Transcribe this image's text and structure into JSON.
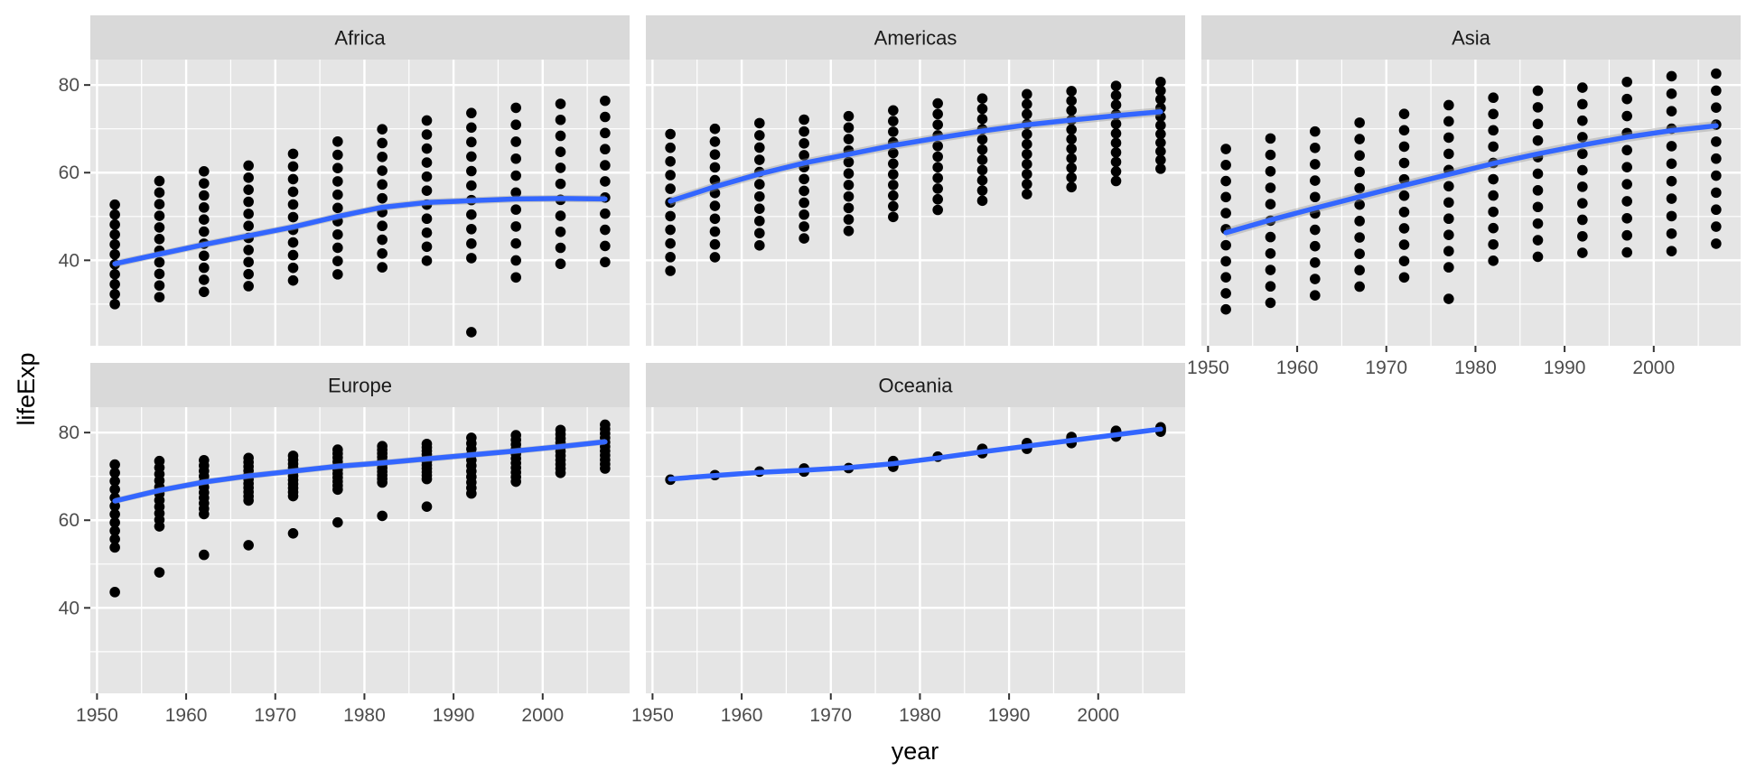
{
  "chart_data": {
    "type": "scatter",
    "facet_by": "continent",
    "xlabel": "year",
    "ylabel": "lifeExp",
    "xlim": [
      1949.25,
      2009.75
    ],
    "ylim": [
      20.5,
      85.8
    ],
    "x_ticks": [
      1950,
      1960,
      1970,
      1980,
      1990,
      2000
    ],
    "y_ticks": [
      40,
      60,
      80
    ],
    "years": [
      1952,
      1957,
      1962,
      1967,
      1972,
      1977,
      1982,
      1987,
      1992,
      1997,
      2002,
      2007
    ],
    "grid": true,
    "legend": "none",
    "colors": {
      "panel_background": "#e5e5e5",
      "strip_background": "#d9d9d9",
      "grid": "#ffffff",
      "points": "#000000",
      "smooth_line": "#3366ff",
      "ribbon": "#999999"
    },
    "facets": [
      {
        "name": "Africa",
        "ranges": [
          [
            30.0,
            52.7
          ],
          [
            31.6,
            58.1
          ],
          [
            32.8,
            60.3
          ],
          [
            34.1,
            61.6
          ],
          [
            35.4,
            64.3
          ],
          [
            36.8,
            67.1
          ],
          [
            38.4,
            69.9
          ],
          [
            39.9,
            71.9
          ],
          [
            40.5,
            73.6
          ],
          [
            36.1,
            74.8
          ],
          [
            39.2,
            75.7
          ],
          [
            39.6,
            76.4
          ]
        ],
        "extra_points": [
          [
            1992,
            23.6
          ]
        ],
        "smooth_years": [
          1952,
          1957,
          1962,
          1967,
          1972,
          1977,
          1982,
          1987,
          1992,
          1997,
          2002,
          2007
        ],
        "smooth_values": [
          39.2,
          41.4,
          43.6,
          45.6,
          47.6,
          50.0,
          52.1,
          53.2,
          53.6,
          54.0,
          54.1,
          54.0
        ],
        "ribbon_halfwidth": 0.8
      },
      {
        "name": "Americas",
        "ranges": [
          [
            37.6,
            68.8
          ],
          [
            40.7,
            70.0
          ],
          [
            43.4,
            71.3
          ],
          [
            45.0,
            72.1
          ],
          [
            46.7,
            72.9
          ],
          [
            49.9,
            74.2
          ],
          [
            51.5,
            75.8
          ],
          [
            53.6,
            76.9
          ],
          [
            55.1,
            77.9
          ],
          [
            56.7,
            78.6
          ],
          [
            58.1,
            79.8
          ],
          [
            60.9,
            80.7
          ]
        ],
        "extra_points": [],
        "smooth_years": [
          1952,
          1957,
          1962,
          1967,
          1972,
          1977,
          1982,
          1987,
          1992,
          1997,
          2002,
          2007
        ],
        "smooth_values": [
          53.5,
          56.8,
          59.7,
          62.2,
          64.2,
          66.2,
          67.9,
          69.5,
          70.9,
          72.0,
          73.0,
          73.9
        ],
        "ribbon_halfwidth": 1.0
      },
      {
        "name": "Asia",
        "ranges": [
          [
            28.8,
            65.4
          ],
          [
            30.3,
            67.8
          ],
          [
            32.0,
            69.4
          ],
          [
            34.0,
            71.4
          ],
          [
            36.1,
            73.4
          ],
          [
            38.4,
            75.4
          ],
          [
            39.9,
            77.1
          ],
          [
            40.8,
            78.7
          ],
          [
            41.7,
            79.4
          ],
          [
            41.8,
            80.7
          ],
          [
            42.1,
            82.0
          ],
          [
            43.8,
            82.6
          ]
        ],
        "extra_points": [
          [
            1977,
            31.2
          ]
        ],
        "smooth_years": [
          1952,
          1957,
          1962,
          1967,
          1972,
          1977,
          1982,
          1987,
          1992,
          1997,
          2002,
          2007
        ],
        "smooth_values": [
          46.3,
          49.2,
          51.9,
          54.5,
          57.1,
          59.6,
          62.1,
          64.3,
          66.3,
          68.1,
          69.6,
          70.7
        ],
        "ribbon_halfwidth": 1.1
      },
      {
        "name": "Europe",
        "ranges": [
          [
            53.8,
            72.7
          ],
          [
            58.6,
            73.5
          ],
          [
            61.4,
            73.7
          ],
          [
            64.5,
            74.2
          ],
          [
            65.5,
            74.7
          ],
          [
            67.0,
            76.1
          ],
          [
            68.6,
            76.9
          ],
          [
            69.4,
            77.4
          ],
          [
            66.1,
            78.8
          ],
          [
            68.8,
            79.4
          ],
          [
            70.8,
            80.6
          ],
          [
            71.8,
            81.8
          ]
        ],
        "extra_points": [
          [
            1952,
            43.6
          ],
          [
            1957,
            48.1
          ],
          [
            1962,
            52.1
          ],
          [
            1967,
            54.3
          ],
          [
            1972,
            57.0
          ],
          [
            1977,
            59.5
          ],
          [
            1982,
            61.0
          ],
          [
            1987,
            63.1
          ]
        ],
        "smooth_years": [
          1952,
          1957,
          1962,
          1967,
          1972,
          1977,
          1982,
          1987,
          1992,
          1997,
          2002,
          2007
        ],
        "smooth_values": [
          64.4,
          66.8,
          68.7,
          70.1,
          71.2,
          72.3,
          73.1,
          74.0,
          74.9,
          75.8,
          76.8,
          77.9
        ],
        "ribbon_halfwidth": 0.7
      },
      {
        "name": "Oceania",
        "ranges": [
          [
            69.1,
            69.4
          ],
          [
            70.3,
            70.3
          ],
          [
            71.0,
            71.2
          ],
          [
            71.1,
            71.8
          ],
          [
            71.9,
            71.9
          ],
          [
            72.2,
            73.5
          ],
          [
            74.3,
            74.7
          ],
          [
            75.3,
            76.3
          ],
          [
            76.3,
            77.6
          ],
          [
            77.6,
            79.0
          ],
          [
            79.1,
            80.4
          ],
          [
            80.2,
            81.2
          ]
        ],
        "extra_points": [],
        "smooth_years": [
          1952,
          1957,
          1962,
          1967,
          1972,
          1977,
          1982,
          1987,
          1992,
          1997,
          2002,
          2007
        ],
        "smooth_values": [
          69.4,
          70.2,
          70.9,
          71.4,
          72.0,
          72.9,
          74.2,
          75.6,
          76.9,
          78.2,
          79.5,
          80.8
        ],
        "ribbon_halfwidth": 0.4
      }
    ]
  }
}
